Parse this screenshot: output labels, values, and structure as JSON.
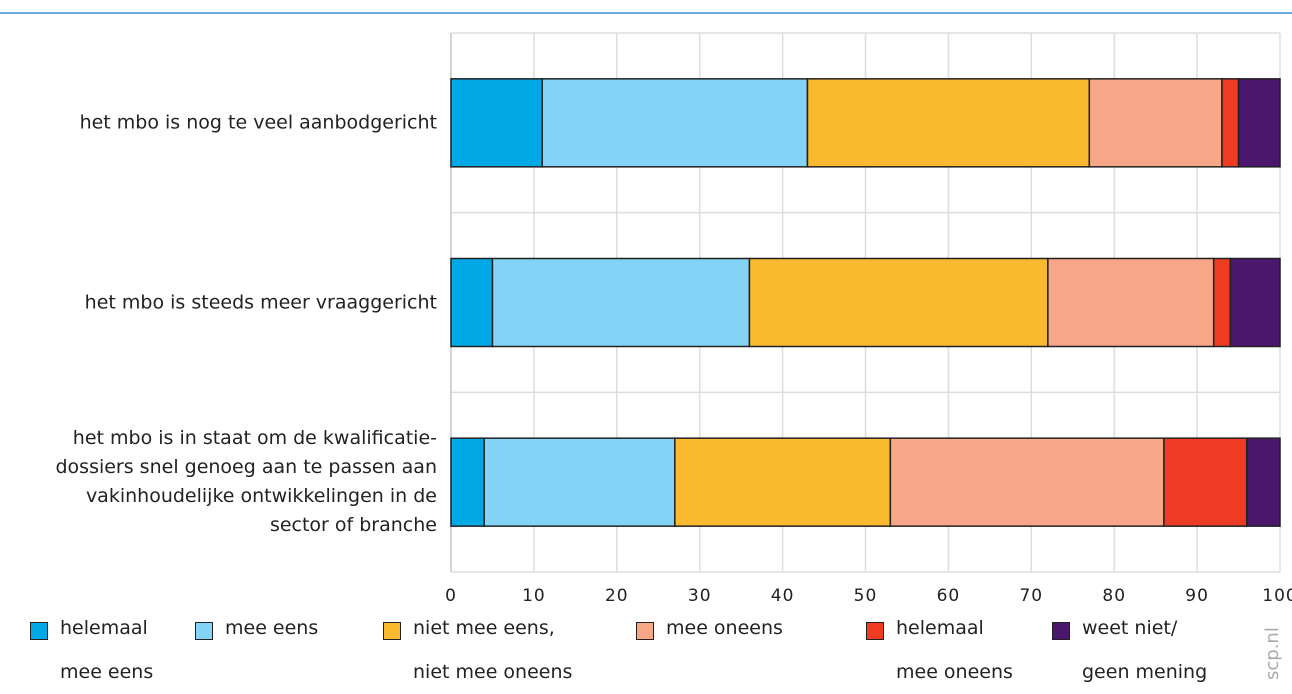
{
  "chart_data": {
    "type": "stacked-bar-horizontal",
    "categories": [
      "het mbo is nog te veel aanbodgericht",
      "het mbo is steeds meer vraaggericht",
      "het mbo is in staat om de kwalificatie-\ndossiers snel genoeg aan te passen aan\nvakinhoudelijke ontwikkelingen in de\nsector of branche"
    ],
    "series": [
      {
        "name": "helemaal\nmee eens",
        "color": "#00a9e6",
        "values": [
          11,
          5,
          4
        ]
      },
      {
        "name": "mee eens",
        "color": "#82d3f5",
        "values": [
          32,
          31,
          23
        ]
      },
      {
        "name": "niet mee eens,\nniet mee oneens",
        "color": "#fbb92f",
        "values": [
          34,
          36,
          26
        ]
      },
      {
        "name": "mee oneens",
        "color": "#f7a788",
        "values": [
          16,
          20,
          33
        ]
      },
      {
        "name": "helemaal\nmee oneens",
        "color": "#ef3b24",
        "values": [
          2,
          2,
          10
        ]
      },
      {
        "name": "weet niet/\ngeen mening",
        "color": "#4b176c",
        "values": [
          5,
          6,
          4
        ]
      }
    ],
    "xlim": [
      0,
      100
    ],
    "xticks": [
      0,
      10,
      20,
      30,
      40,
      50,
      60,
      70,
      80,
      90,
      100
    ],
    "grid": true,
    "source": "scp.nl"
  }
}
